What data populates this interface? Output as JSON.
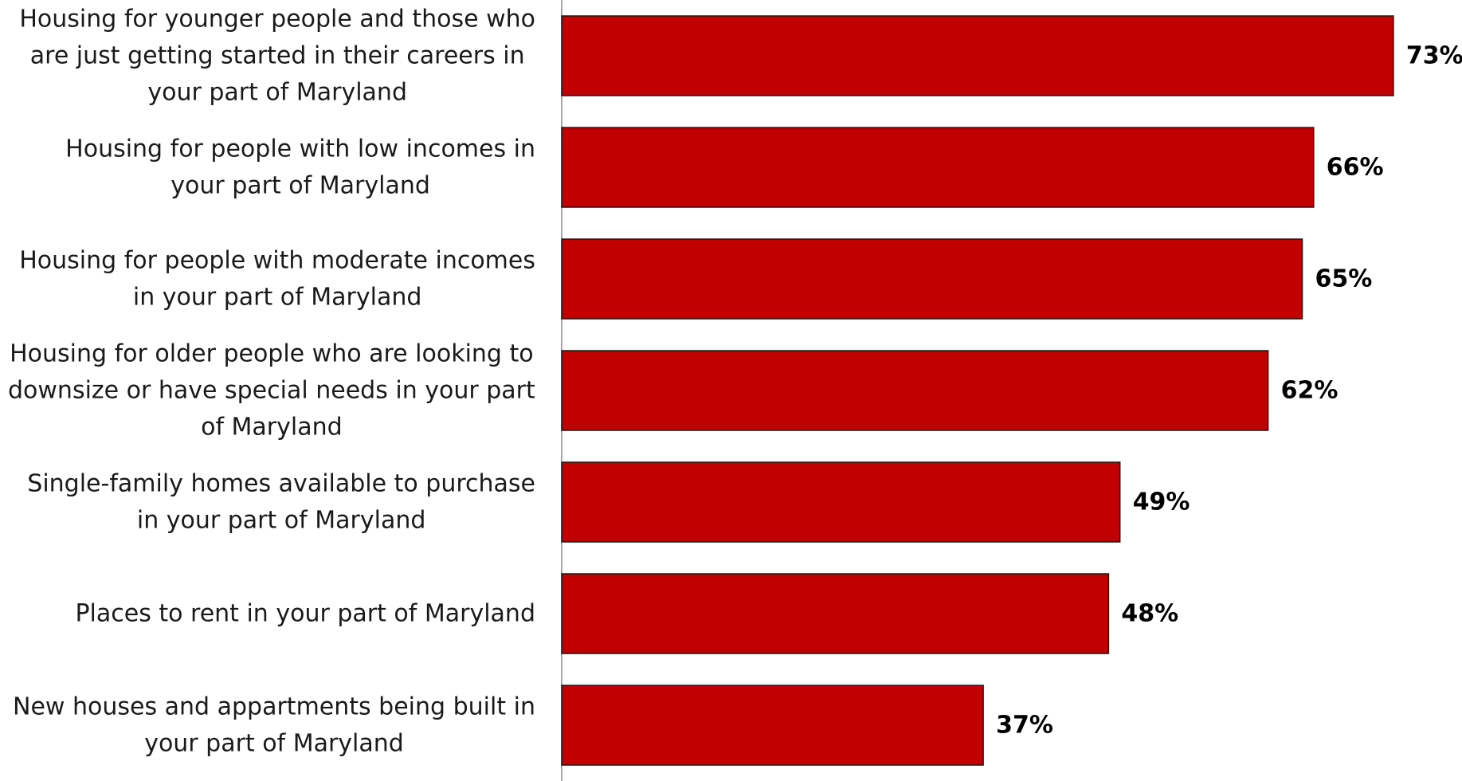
{
  "chart_data": {
    "type": "bar",
    "orientation": "horizontal",
    "categories": [
      [
        "Housing for younger people and those who",
        "are just getting started in their careers in",
        "your part of Maryland"
      ],
      [
        "Housing for people with low incomes in",
        "your part of Maryland"
      ],
      [
        "Housing for people with moderate incomes",
        "in your part of Maryland"
      ],
      [
        "Housing for older people who are looking to",
        "downsize or have special needs in your part",
        "of Maryland"
      ],
      [
        "Single-family homes available to purchase",
        "in your part of Maryland"
      ],
      [
        "Places to rent in your part of Maryland"
      ],
      [
        "New houses and appartments being built in",
        "your part of Maryland"
      ]
    ],
    "values": [
      73,
      66,
      65,
      62,
      49,
      48,
      37
    ],
    "value_labels": [
      "73%",
      "66%",
      "65%",
      "62%",
      "49%",
      "48%",
      "37%"
    ],
    "xlim": [
      0,
      100
    ],
    "grid": false,
    "legend": "none",
    "colors": {
      "bar": "#c00000",
      "bar_border": "#1a1a1a",
      "axis": "#8c8c8c"
    }
  }
}
